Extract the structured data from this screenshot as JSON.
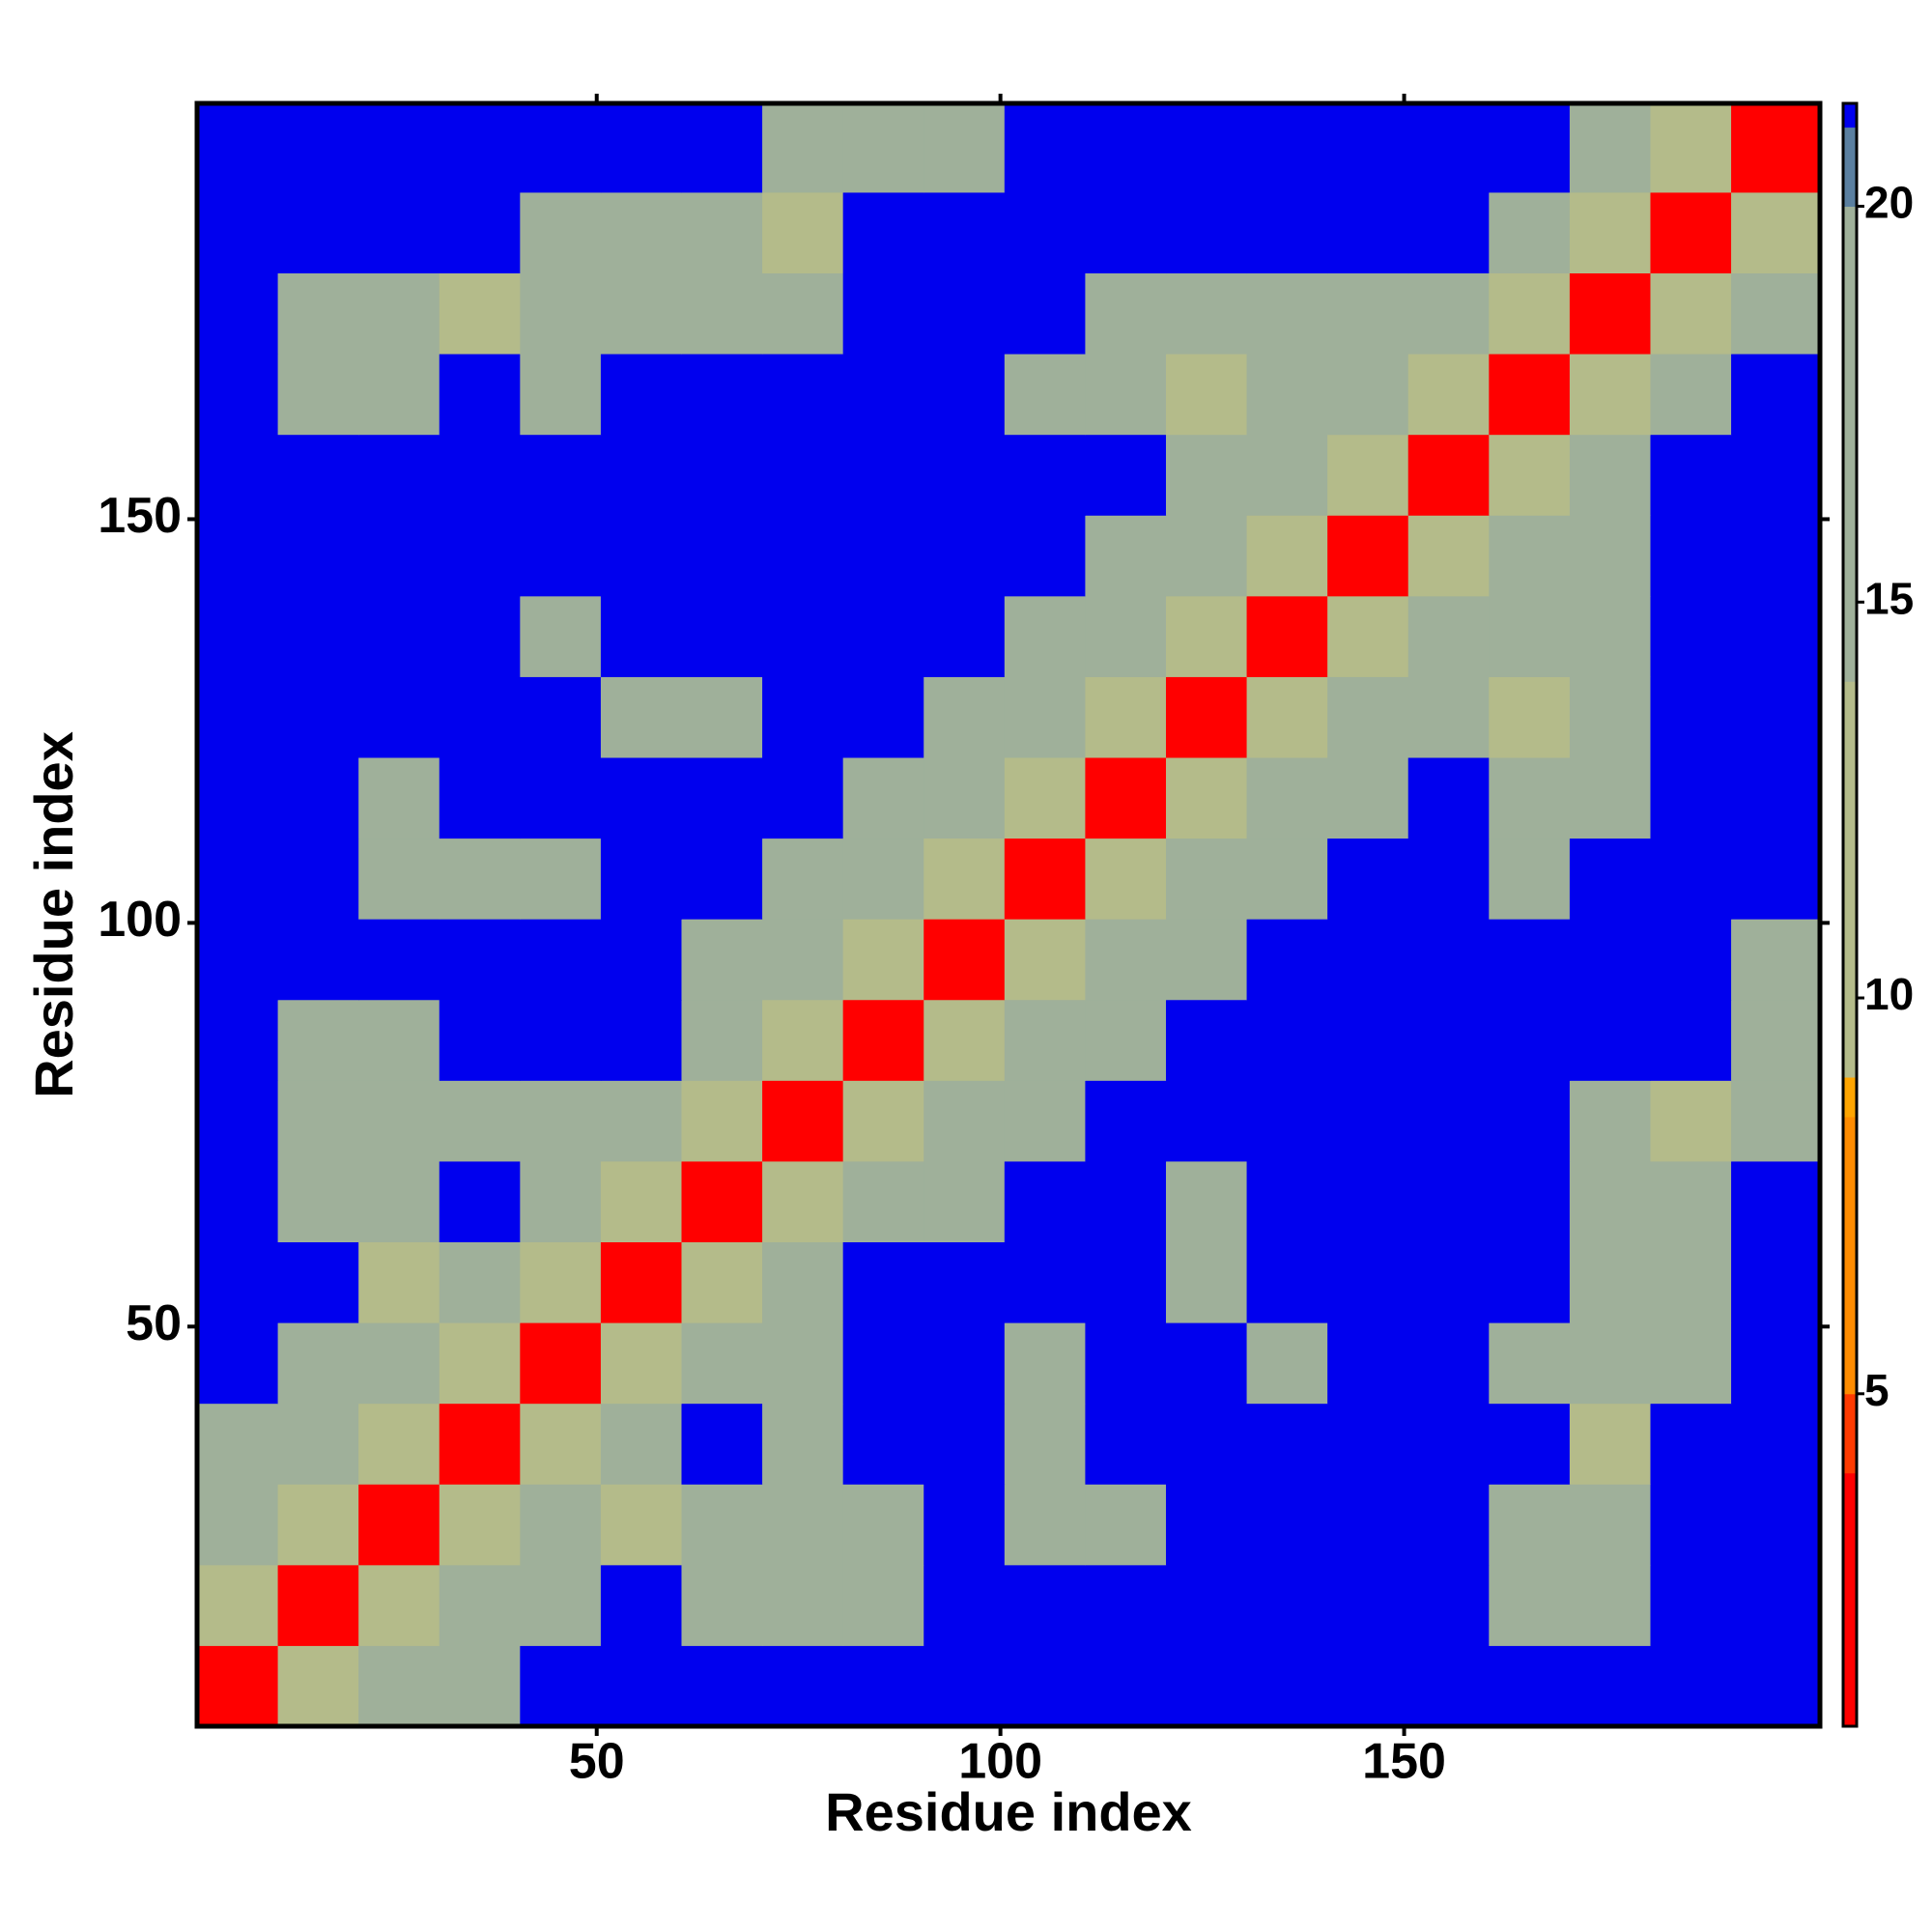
{
  "chart_data": {
    "type": "heatmap",
    "xlabel": "Residue index",
    "ylabel": "Residue index",
    "xbins": [
      0.5,
      10.5,
      20.5,
      30.5,
      40.5,
      50.5,
      60.5,
      70.5,
      80.5,
      90.5,
      100.5,
      110.5,
      120.5,
      130.5,
      140.5,
      150.5,
      160.5,
      170.5,
      180.5,
      190.5,
      201.5
    ],
    "ybins": [
      0.5,
      10.5,
      20.5,
      30.5,
      40.5,
      50.5,
      60.5,
      70.5,
      80.5,
      90.5,
      100.5,
      110.5,
      120.5,
      130.5,
      140.5,
      150.5,
      160.5,
      170.5,
      180.5,
      190.5,
      201.5
    ],
    "z": [
      [
        3,
        10,
        16,
        17,
        21,
        21,
        21,
        21,
        21,
        21,
        21,
        21,
        21,
        21,
        21,
        21,
        21,
        21,
        21,
        21
      ],
      [
        10,
        3,
        10,
        16,
        14,
        21,
        15,
        16,
        16,
        21,
        21,
        21,
        21,
        21,
        21,
        21,
        15,
        15,
        21,
        21
      ],
      [
        16,
        10,
        3,
        10,
        16,
        12,
        16,
        14,
        15,
        21,
        14,
        15,
        21,
        21,
        21,
        21,
        16,
        15,
        21,
        21
      ],
      [
        17,
        16,
        10,
        3,
        10,
        16,
        21,
        14,
        21,
        21,
        15,
        21,
        21,
        21,
        21,
        21,
        21,
        13,
        21,
        21
      ],
      [
        21,
        14,
        16,
        10,
        3,
        10,
        16,
        16,
        21,
        21,
        15,
        21,
        21,
        17,
        21,
        21,
        15,
        14,
        16,
        21
      ],
      [
        21,
        21,
        12,
        16,
        10,
        3,
        10,
        16,
        21,
        21,
        21,
        21,
        16,
        21,
        21,
        21,
        21,
        16,
        15,
        21
      ],
      [
        21,
        15,
        16,
        21,
        16,
        10,
        3,
        10,
        16,
        14,
        21,
        21,
        16,
        21,
        21,
        21,
        21,
        15,
        16,
        21
      ],
      [
        21,
        16,
        14,
        14,
        16,
        16,
        10,
        3,
        10,
        16,
        15,
        21,
        21,
        21,
        21,
        21,
        21,
        16,
        13,
        16
      ],
      [
        21,
        16,
        15,
        21,
        21,
        21,
        16,
        10,
        3,
        10,
        16,
        15,
        21,
        21,
        21,
        21,
        21,
        21,
        21,
        14
      ],
      [
        21,
        21,
        21,
        21,
        21,
        21,
        14,
        16,
        10,
        3,
        10,
        16,
        15,
        21,
        21,
        21,
        21,
        21,
        21,
        15
      ],
      [
        21,
        21,
        14,
        15,
        15,
        21,
        21,
        15,
        16,
        10,
        3,
        10,
        16,
        15,
        21,
        21,
        16,
        21,
        21,
        21
      ],
      [
        21,
        21,
        15,
        21,
        21,
        21,
        21,
        21,
        15,
        16,
        10,
        3,
        10,
        16,
        15,
        21,
        16,
        14,
        21,
        21
      ],
      [
        21,
        21,
        21,
        21,
        21,
        16,
        16,
        21,
        21,
        15,
        16,
        10,
        3,
        10,
        16,
        14,
        13,
        15,
        21,
        21
      ],
      [
        21,
        21,
        21,
        21,
        17,
        21,
        21,
        21,
        21,
        21,
        15,
        16,
        10,
        3,
        10,
        16,
        15,
        15,
        21,
        21
      ],
      [
        21,
        21,
        21,
        21,
        21,
        21,
        21,
        21,
        21,
        21,
        21,
        15,
        16,
        10,
        3,
        10,
        16,
        15,
        21,
        21
      ],
      [
        21,
        21,
        21,
        21,
        21,
        21,
        21,
        21,
        21,
        21,
        21,
        21,
        14,
        16,
        10,
        3,
        10,
        16,
        21,
        21
      ],
      [
        21,
        15,
        16,
        21,
        15,
        21,
        21,
        21,
        21,
        21,
        16,
        16,
        13,
        15,
        16,
        10,
        3,
        10,
        16,
        21
      ],
      [
        21,
        15,
        15,
        13,
        14,
        16,
        15,
        16,
        21,
        21,
        21,
        14,
        15,
        15,
        15,
        16,
        10,
        3,
        10,
        16
      ],
      [
        21,
        21,
        21,
        21,
        16,
        15,
        16,
        13,
        21,
        21,
        21,
        21,
        21,
        21,
        21,
        21,
        16,
        10,
        3,
        10
      ],
      [
        21,
        21,
        21,
        21,
        21,
        21,
        21,
        16,
        14,
        15,
        21,
        21,
        21,
        21,
        21,
        21,
        21,
        16,
        10,
        3
      ]
    ],
    "xlim": [
      0.5,
      201.5
    ],
    "ylim": [
      0.5,
      201.5
    ],
    "xticks": [
      50,
      100,
      150
    ],
    "yticks": [
      50,
      100,
      150
    ],
    "zlim": [
      0.8,
      21.3
    ],
    "zticks": [
      5,
      10,
      15,
      20
    ],
    "colorscale": [
      [
        0.8,
        "#ff0000"
      ],
      [
        4,
        "#ff3a00"
      ],
      [
        5,
        "#ff8c00"
      ],
      [
        8.5,
        "#ffa500"
      ],
      [
        9,
        "#b4bb8a"
      ],
      [
        14,
        "#9fb09a"
      ],
      [
        20,
        "#5a7fa0"
      ],
      [
        21,
        "#0000ee"
      ]
    ]
  }
}
